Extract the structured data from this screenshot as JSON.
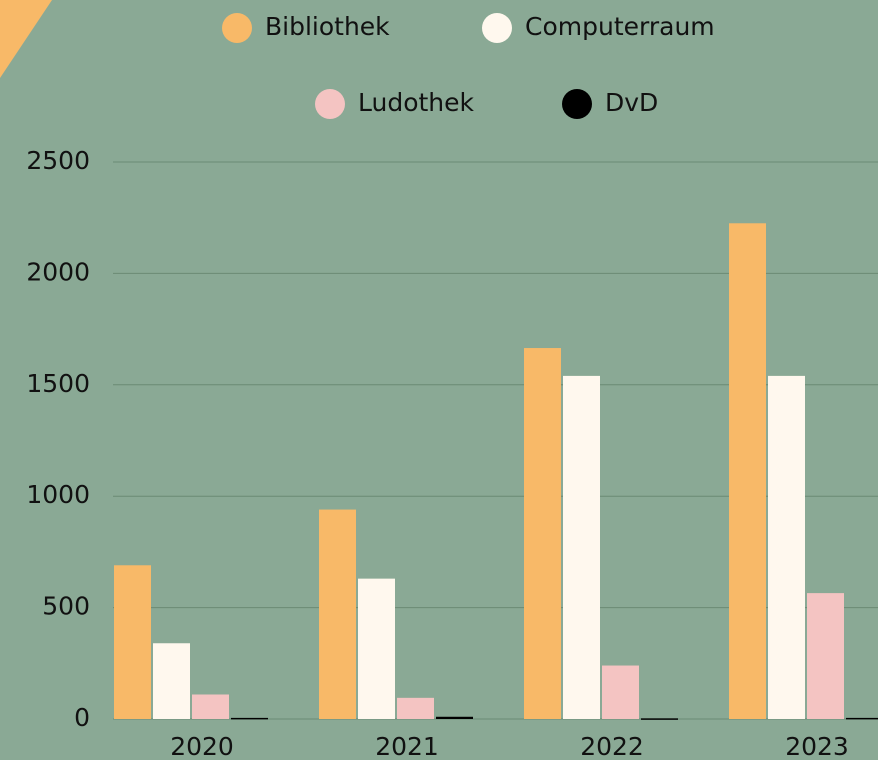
{
  "chart_data": {
    "type": "bar",
    "categories": [
      "2020",
      "2021",
      "2022",
      "2023"
    ],
    "series": [
      {
        "name": "Bibliothek",
        "color": "#f8b968",
        "values": [
          690,
          940,
          1665,
          2225
        ]
      },
      {
        "name": "Computerraum",
        "color": "#fff8ee",
        "values": [
          340,
          630,
          1540,
          1540
        ]
      },
      {
        "name": "Ludothek",
        "color": "#f4c4c2",
        "values": [
          110,
          95,
          240,
          565
        ]
      },
      {
        "name": "DvD",
        "color": "#000000",
        "values": [
          5,
          10,
          3,
          5
        ]
      }
    ],
    "ylim": [
      0,
      2500
    ],
    "yticks": [
      0,
      500,
      1000,
      1500,
      2000,
      2500
    ],
    "grid": true
  }
}
